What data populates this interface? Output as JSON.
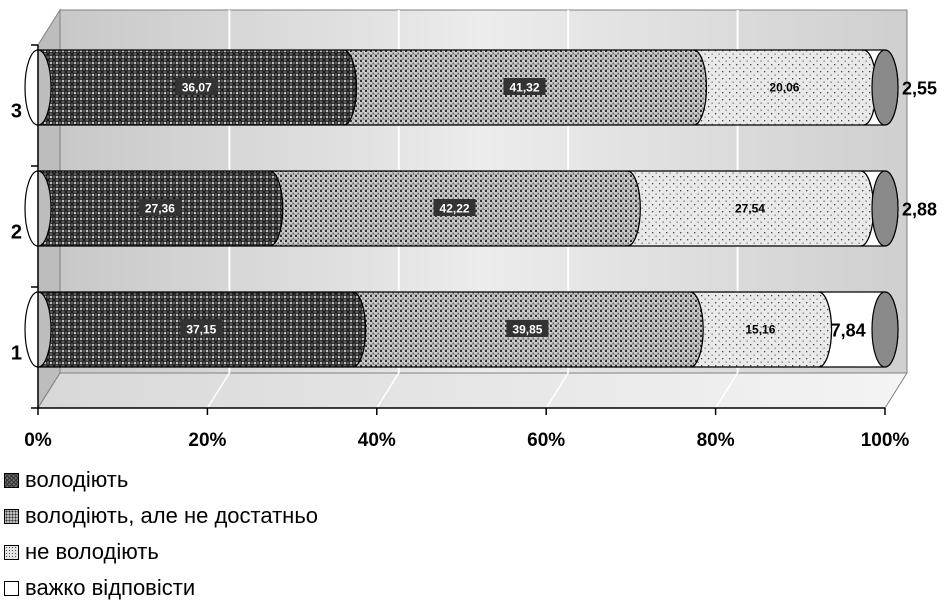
{
  "chart_data": {
    "type": "bar",
    "orientation": "horizontal",
    "stacked": "percent",
    "three_d": true,
    "categories": [
      "1",
      "2",
      "3"
    ],
    "series": [
      {
        "name": "володіють",
        "values": [
          37.15,
          27.36,
          36.07
        ],
        "labels": [
          "37,15",
          "27,36",
          "36,07"
        ],
        "pattern": "dense-cross"
      },
      {
        "name": "володіють, але не достатньо",
        "values": [
          39.85,
          42.22,
          41.32
        ],
        "labels": [
          "39,85",
          "42,22",
          "41,32"
        ],
        "pattern": "medium-dots"
      },
      {
        "name": "не володіють",
        "values": [
          15.16,
          27.54,
          20.06
        ],
        "labels": [
          "15,16",
          "27,54",
          "20,06"
        ],
        "pattern": "light-dots"
      },
      {
        "name": "важко відповісти",
        "values": [
          7.84,
          2.88,
          2.55
        ],
        "labels": [
          "7,84",
          "2,88",
          "2,55"
        ],
        "pattern": "white"
      }
    ],
    "x_ticks": [
      "0%",
      "20%",
      "40%",
      "60%",
      "80%",
      "100%"
    ],
    "xlim": [
      0,
      100
    ],
    "grid": true,
    "legend_position": "bottom-left",
    "title": "",
    "xlabel": "",
    "ylabel": ""
  }
}
